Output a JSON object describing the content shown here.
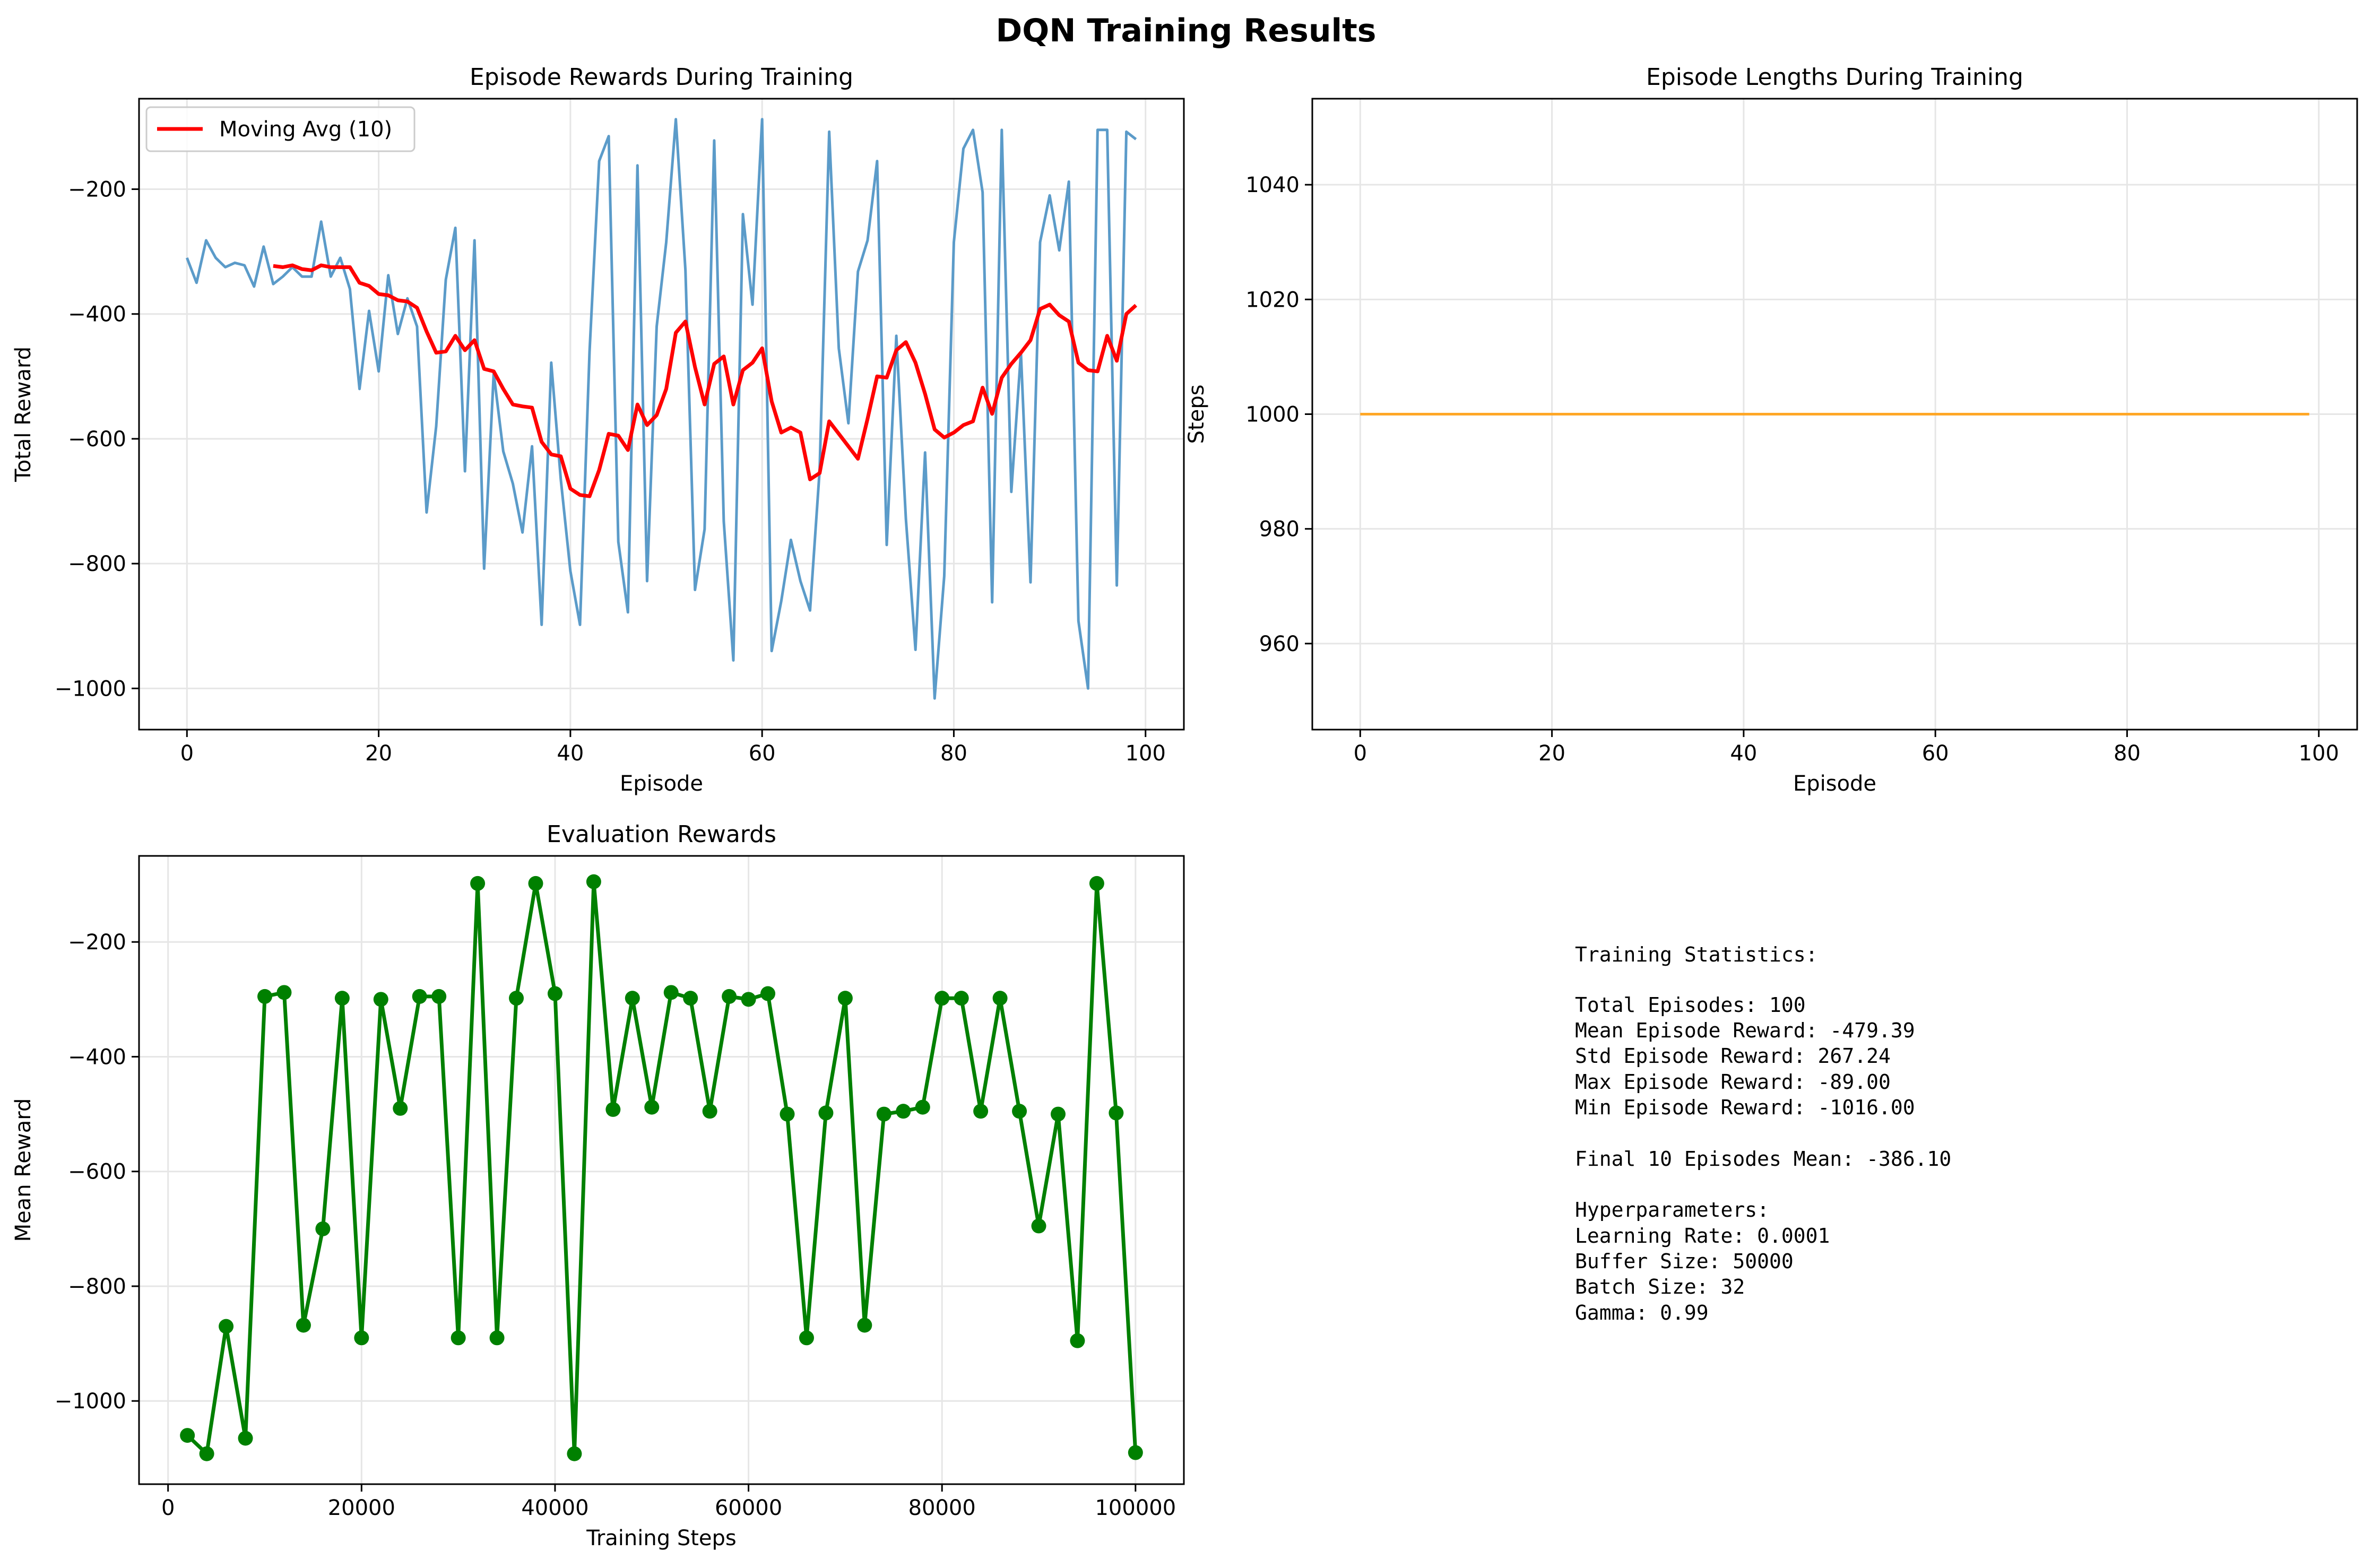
{
  "suptitle": "DQN Training Results",
  "colors": {
    "raw_reward": "#5b9bc9",
    "moving_avg": "#ff0000",
    "episode_length": "#ffa726",
    "eval": "#008000",
    "grid": "#e6e6e6"
  },
  "chart_data": [
    {
      "type": "line",
      "title": "Episode Rewards During Training",
      "xlabel": "Episode",
      "ylabel": "Total Reward",
      "xlim": [
        -5,
        104
      ],
      "ylim": [
        -1066,
        -55
      ],
      "xticks": [
        0,
        20,
        40,
        60,
        80,
        100
      ],
      "yticks": [
        -1000,
        -800,
        -600,
        -400,
        -200
      ],
      "grid": true,
      "legend": "upper-left",
      "series": [
        {
          "color": "#5b9bc9",
          "x_start": 0,
          "values": [
            -310,
            -350,
            -282,
            -310,
            -325,
            -318,
            -322,
            -356,
            -292,
            -352,
            -340,
            -325,
            -340,
            -340,
            -252,
            -340,
            -310,
            -360,
            -520,
            -395,
            -492,
            -338,
            -432,
            -375,
            -420,
            -718,
            -580,
            -345,
            -262,
            -652,
            -282,
            -808,
            -495,
            -620,
            -672,
            -750,
            -612,
            -898,
            -478,
            -665,
            -812,
            -898,
            -460,
            -155,
            -115,
            -765,
            -878,
            -162,
            -828,
            -420,
            -285,
            -88,
            -330,
            -842,
            -745,
            -122,
            -732,
            -955,
            -240,
            -385,
            -88,
            -940,
            -860,
            -762,
            -828,
            -875,
            -650,
            -108,
            -455,
            -575,
            -332,
            -282,
            -155,
            -770,
            -435,
            -728,
            -938,
            -622,
            -1016,
            -820,
            -285,
            -135,
            -105,
            -205,
            -862,
            -105,
            -685,
            -462,
            -830,
            -285,
            -210,
            -298,
            -188,
            -892,
            -1000,
            -105,
            -105,
            -835,
            -108,
            -120
          ]
        },
        {
          "name": "Moving Avg (10)",
          "color": "#ff0000",
          "x_start": 9,
          "values": [
            -323,
            -325,
            -322,
            -328,
            -330,
            -322,
            -325,
            -325,
            -325,
            -350,
            -355,
            -368,
            -370,
            -378,
            -380,
            -390,
            -428,
            -462,
            -460,
            -435,
            -458,
            -442,
            -488,
            -492,
            -520,
            -545,
            -548,
            -550,
            -605,
            -625,
            -628,
            -680,
            -690,
            -692,
            -650,
            -592,
            -595,
            -618,
            -545,
            -578,
            -562,
            -520,
            -430,
            -412,
            -485,
            -545,
            -480,
            -468,
            -545,
            -490,
            -478,
            -455,
            -540,
            -590,
            -582,
            -590,
            -665,
            -655,
            -572,
            -592,
            -612,
            -632,
            -568,
            -500,
            -502,
            -458,
            -445,
            -478,
            -528,
            -585,
            -598,
            -590,
            -578,
            -572,
            -518,
            -560,
            -502,
            -480,
            -462,
            -442,
            -392,
            -385,
            -402,
            -412,
            -478,
            -490,
            -492,
            -435,
            -475,
            -400,
            -386
          ]
        }
      ]
    },
    {
      "type": "line",
      "title": "Episode Lengths During Training",
      "xlabel": "Episode",
      "ylabel": "Steps",
      "xlim": [
        -5,
        104
      ],
      "ylim": [
        945,
        1055
      ],
      "xticks": [
        0,
        20,
        40,
        60,
        80,
        100
      ],
      "yticks": [
        960,
        980,
        1000,
        1020,
        1040
      ],
      "grid": true,
      "series": [
        {
          "color": "#ffa726",
          "x": [
            0,
            99
          ],
          "values": [
            1000,
            1000
          ]
        }
      ]
    },
    {
      "type": "line",
      "title": "Evaluation Rewards",
      "xlabel": "Training Steps",
      "ylabel": "Mean Reward",
      "xlim": [
        -3000,
        105000
      ],
      "ylim": [
        -1145,
        -50
      ],
      "xticks": [
        0,
        20000,
        40000,
        60000,
        80000,
        100000
      ],
      "yticks": [
        -1000,
        -800,
        -600,
        -400,
        -200
      ],
      "grid": true,
      "series": [
        {
          "color": "#008000",
          "markers": true,
          "x": [
            2000,
            4000,
            6000,
            8000,
            10000,
            12000,
            14000,
            16000,
            18000,
            20000,
            22000,
            24000,
            26000,
            28000,
            30000,
            32000,
            34000,
            36000,
            38000,
            40000,
            42000,
            44000,
            46000,
            48000,
            50000,
            52000,
            54000,
            56000,
            58000,
            60000,
            62000,
            64000,
            66000,
            68000,
            70000,
            72000,
            74000,
            76000,
            78000,
            80000,
            82000,
            84000,
            86000,
            88000,
            90000,
            92000,
            94000,
            96000,
            98000,
            100000
          ],
          "values": [
            -1060,
            -1092,
            -870,
            -1065,
            -295,
            -288,
            -868,
            -700,
            -298,
            -890,
            -300,
            -490,
            -295,
            -295,
            -890,
            -98,
            -890,
            -298,
            -98,
            -290,
            -1092,
            -95,
            -492,
            -298,
            -488,
            -288,
            -298,
            -495,
            -295,
            -300,
            -290,
            -500,
            -890,
            -498,
            -298,
            -868,
            -500,
            -495,
            -488,
            -298,
            -298,
            -495,
            -298,
            -495,
            -695,
            -500,
            -895,
            -98,
            -498,
            -1090
          ]
        }
      ]
    }
  ],
  "stats": {
    "heading": "Training Statistics:",
    "total_episodes": "Total Episodes: 100",
    "mean_reward": "Mean Episode Reward: -479.39",
    "std_reward": "Std Episode Reward: 267.24",
    "max_reward": "Max Episode Reward: -89.00",
    "min_reward": "Min Episode Reward: -1016.00",
    "final_mean": "Final 10 Episodes Mean: -386.10",
    "hyper_heading": "Hyperparameters:",
    "learning_rate": "Learning Rate: 0.0001",
    "buffer_size": "Buffer Size: 50000",
    "batch_size": "Batch Size: 32",
    "gamma": "Gamma: 0.99"
  }
}
